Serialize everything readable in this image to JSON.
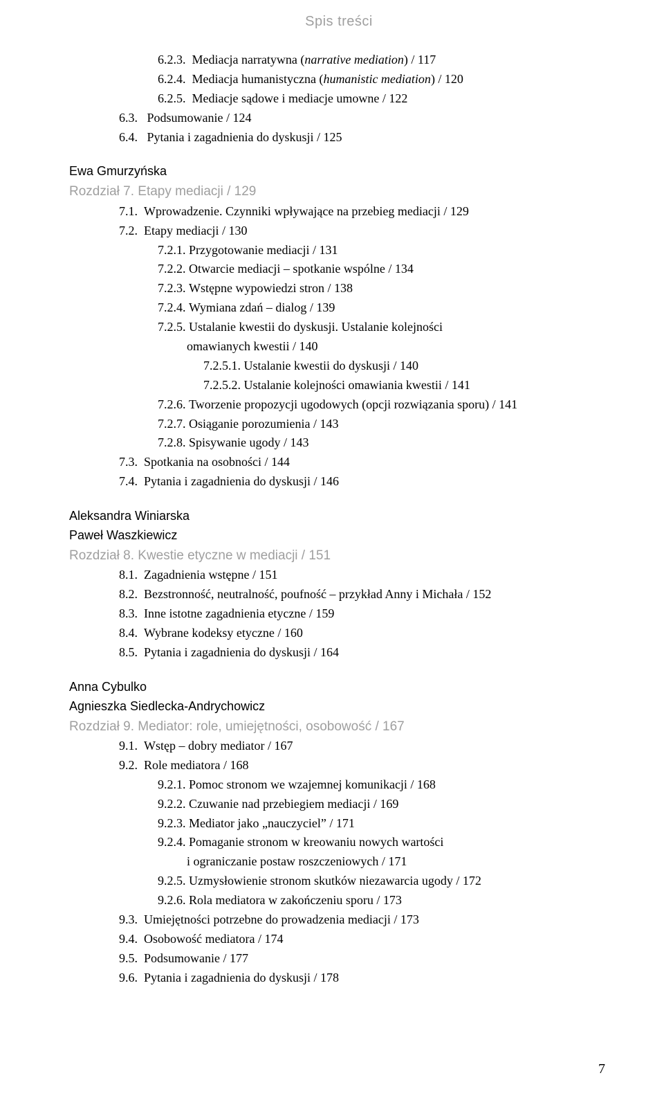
{
  "header": "Spis treści",
  "page_number": "7",
  "colors": {
    "text": "#000000",
    "light": "#9f9f9f",
    "background": "#ffffff"
  },
  "typography": {
    "serif_family": "Georgia",
    "sans_family": "Arial",
    "body_size_pt": 13,
    "line_height": 1.55
  },
  "s623": {
    "n": "6.2.3.",
    "t": "Mediacja narratywna (",
    "it": "narrative mediation",
    "t2": ")   / 117"
  },
  "s624": {
    "n": "6.2.4.",
    "t": "Mediacja humanistyczna (",
    "it": "humanistic mediation",
    "t2": ")    / 120"
  },
  "s625": {
    "n": "6.2.5.",
    "t": "Mediacje sądowe i mediacje umowne   / 122"
  },
  "s63": {
    "n": "6.3.",
    "t": "Podsumowanie   / 124"
  },
  "s64": {
    "n": "6.4.",
    "t": "Pytania i zagadnienia do dyskusji   / 125"
  },
  "ch7_author": "Ewa Gmurzyńska",
  "ch7_title": "Rozdział 7. Etapy mediacji   / 129",
  "s71": {
    "n": "7.1.",
    "t": "Wprowadzenie. Czynniki wpływające na przebieg mediacji   / 129"
  },
  "s72": {
    "n": "7.2.",
    "t": "Etapy mediacji   / 130"
  },
  "s721": {
    "n": "7.2.1.",
    "t": "Przygotowanie mediacji   / 131"
  },
  "s722": {
    "n": "7.2.2.",
    "t": "Otwarcie mediacji – spotkanie wspólne   / 134"
  },
  "s723": {
    "n": "7.2.3.",
    "t": "Wstępne wypowiedzi stron   / 138"
  },
  "s724": {
    "n": "7.2.4.",
    "t": "Wymiana zdań – dialog   / 139"
  },
  "s725": {
    "n": "7.2.5.",
    "t": "Ustalanie kwestii do dyskusji. Ustalanie kolejności"
  },
  "s725b": "omawianych kwestii   / 140",
  "s7251": {
    "n": "7.2.5.1.",
    "t": "Ustalanie kwestii do dyskusji   / 140"
  },
  "s7252": {
    "n": "7.2.5.2.",
    "t": "Ustalanie kolejności omawiania kwestii   / 141"
  },
  "s726": {
    "n": "7.2.6.",
    "t": "Tworzenie propozycji ugodowych (opcji rozwiązania sporu)   / 141"
  },
  "s727": {
    "n": "7.2.7.",
    "t": "Osiąganie porozumienia   / 143"
  },
  "s728": {
    "n": "7.2.8.",
    "t": "Spisywanie ugody   / 143"
  },
  "s73": {
    "n": "7.3.",
    "t": "Spotkania na osobności   / 144"
  },
  "s74": {
    "n": "7.4.",
    "t": "Pytania i zagadnienia do dyskusji   / 146"
  },
  "ch8_author1": "Aleksandra Winiarska",
  "ch8_author2": "Paweł Waszkiewicz",
  "ch8_title": "Rozdział 8. Kwestie etyczne w mediacji   / 151",
  "s81": {
    "n": "8.1.",
    "t": "Zagadnienia wstępne   / 151"
  },
  "s82": {
    "n": "8.2.",
    "t": "Bezstronność, neutralność, poufność – przykład Anny i Michała   / 152"
  },
  "s83": {
    "n": "8.3.",
    "t": "Inne istotne zagadnienia etyczne   / 159"
  },
  "s84": {
    "n": "8.4.",
    "t": "Wybrane kodeksy etyczne   / 160"
  },
  "s85": {
    "n": "8.5.",
    "t": "Pytania i zagadnienia do dyskusji   / 164"
  },
  "ch9_author1": "Anna Cybulko",
  "ch9_author2": "Agnieszka Siedlecka-Andrychowicz",
  "ch9_title": "Rozdział 9. Mediator: role, umiejętności, osobowość   / 167",
  "s91": {
    "n": "9.1.",
    "t": "Wstęp – dobry mediator   / 167"
  },
  "s92": {
    "n": "9.2.",
    "t": "Role mediatora   / 168"
  },
  "s921": {
    "n": "9.2.1.",
    "t": "Pomoc stronom we wzajemnej komunikacji   / 168"
  },
  "s922": {
    "n": "9.2.2.",
    "t": "Czuwanie nad przebiegiem mediacji   / 169"
  },
  "s923": {
    "n": "9.2.3.",
    "t": "Mediator jako „nauczyciel”   / 171"
  },
  "s924": {
    "n": "9.2.4.",
    "t": "Pomaganie stronom w kreowaniu nowych wartości"
  },
  "s924b": "i ograniczanie postaw roszczeniowych   / 171",
  "s925": {
    "n": "9.2.5.",
    "t": "Uzmysłowienie stronom skutków niezawarcia ugody   / 172"
  },
  "s926": {
    "n": "9.2.6.",
    "t": "Rola mediatora w zakończeniu sporu   / 173"
  },
  "s93": {
    "n": "9.3.",
    "t": "Umiejętności potrzebne do prowadzenia mediacji   / 173"
  },
  "s94": {
    "n": "9.4.",
    "t": "Osobowość mediatora   / 174"
  },
  "s95": {
    "n": "9.5.",
    "t": "Podsumowanie   / 177"
  },
  "s96": {
    "n": "9.6.",
    "t": "Pytania i zagadnienia do dyskusji   / 178"
  }
}
